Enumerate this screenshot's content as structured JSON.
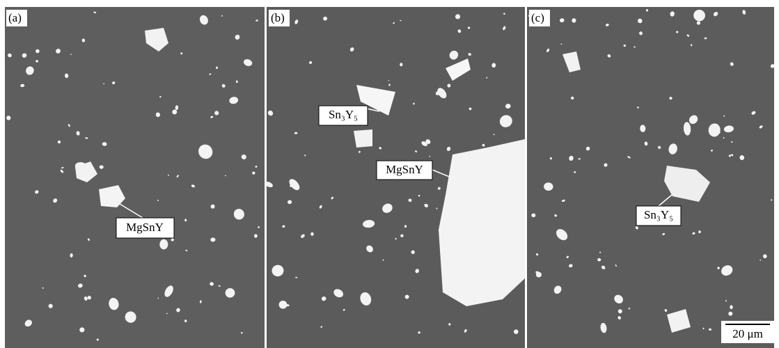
{
  "panels": [
    {
      "label": "(a)",
      "annotations": [
        {
          "text": "MgSnY"
        }
      ]
    },
    {
      "label": "(b)",
      "annotations": [
        {
          "text": "Sn₃Y₅"
        },
        {
          "text": "MgSnY"
        }
      ]
    },
    {
      "label": "(c)",
      "annotations": [
        {
          "text": "Sn₃Y₅"
        }
      ]
    }
  ],
  "scale_bar": "20 μm"
}
